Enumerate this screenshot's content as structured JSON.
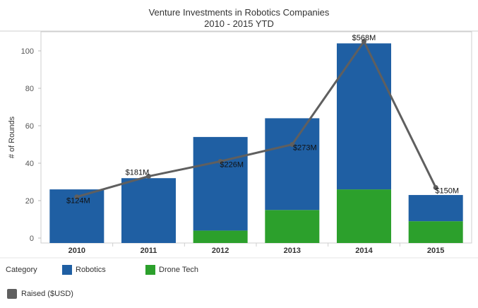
{
  "chart_data": {
    "type": "bar",
    "title": "Venture Investments in Robotics Companies",
    "subtitle": "2010 - 2015 YTD",
    "ylabel": "# of Rounds",
    "xlabel": "",
    "ylim": [
      0,
      110
    ],
    "yticks": [
      0,
      20,
      40,
      60,
      80,
      100
    ],
    "stacked": true,
    "categories": [
      "2010",
      "2011",
      "2012",
      "2013",
      "2014",
      "2015"
    ],
    "series": [
      {
        "name": "Robotics",
        "color": "#1f5fa3",
        "values": [
          26,
          32,
          50,
          49,
          78,
          14
        ]
      },
      {
        "name": "Drone Tech",
        "color": "#2ca02c",
        "values": [
          0,
          0,
          4,
          15,
          26,
          9
        ]
      }
    ],
    "line": {
      "name": "Raised ($USD)",
      "color": "#5f5f5f",
      "y_positions": [
        22,
        33,
        41,
        50,
        105,
        27
      ],
      "labels": [
        "$124M",
        "$181M",
        "$226M",
        "$273M",
        "$568M",
        "$150M"
      ]
    },
    "grid": false,
    "legend": {
      "title": "Category",
      "placement": "bottom-left"
    }
  }
}
